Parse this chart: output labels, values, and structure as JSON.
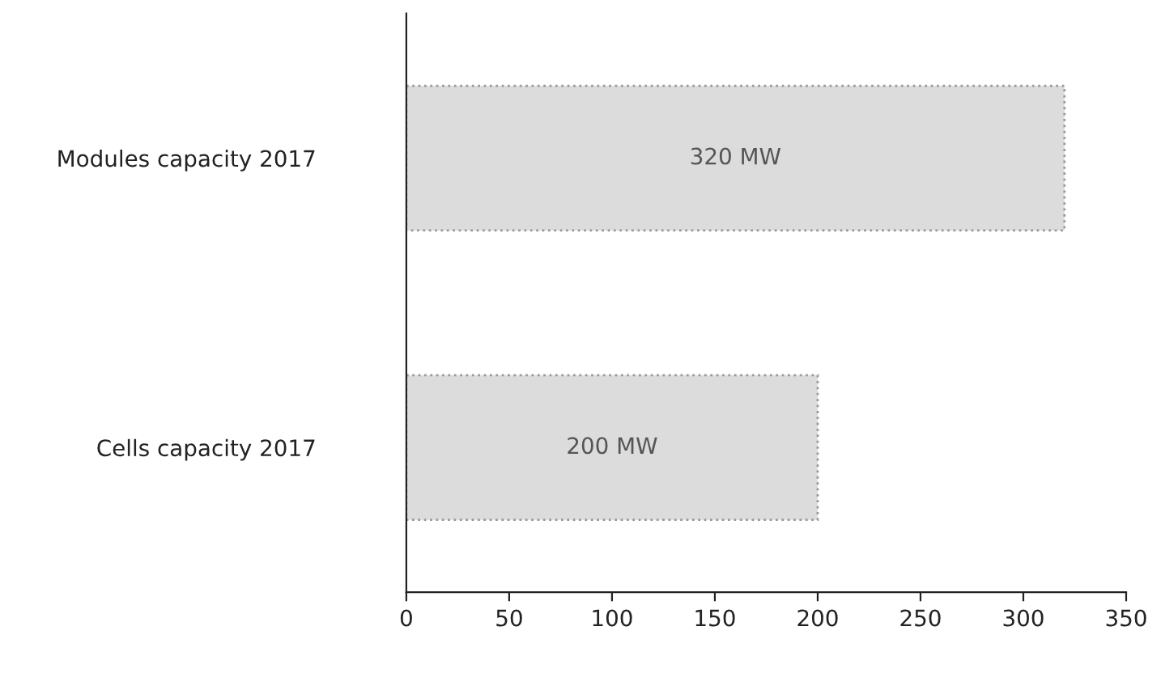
{
  "chart_data": {
    "type": "bar",
    "orientation": "horizontal",
    "categories": [
      "Modules capacity 2017",
      "Cells capacity 2017"
    ],
    "values": [
      320,
      200
    ],
    "value_labels": [
      "320 MW",
      "200 MW"
    ],
    "color": "#dcdcdc",
    "xlim": [
      0,
      350
    ],
    "xticks": [
      0,
      50,
      100,
      150,
      200,
      250,
      300,
      350
    ],
    "grid": false,
    "legend": false
  }
}
